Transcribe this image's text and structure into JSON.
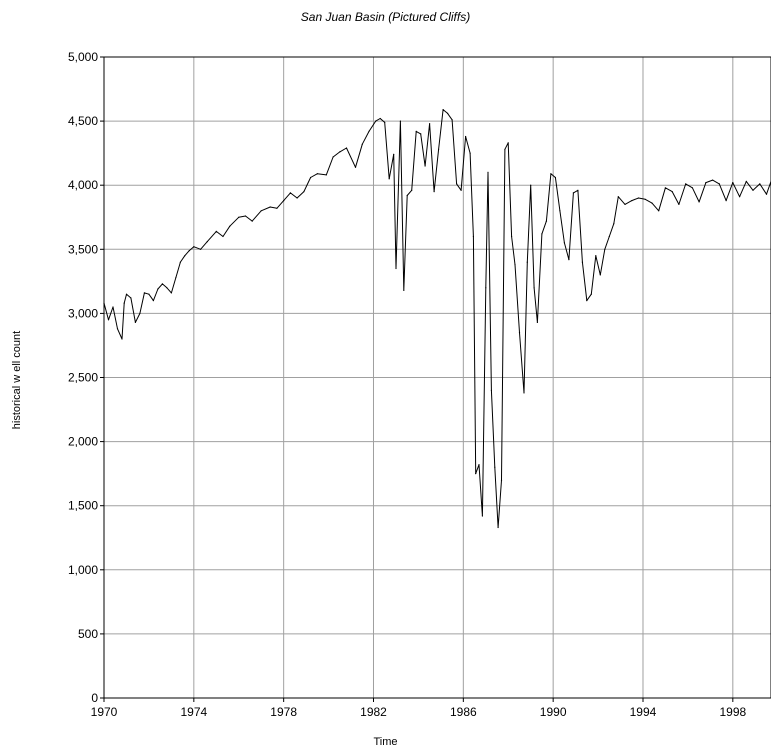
{
  "chart_data": {
    "type": "line",
    "title": "San Juan Basin (Pictured Cliffs)",
    "xlabel": "Time",
    "ylabel": "historical w ell count",
    "xlim": [
      1970,
      1999.7
    ],
    "ylim": [
      0,
      5000
    ],
    "grid": true,
    "x_ticks": [
      1970,
      1974,
      1978,
      1982,
      1986,
      1990,
      1994,
      1998
    ],
    "x_tick_labels": [
      "1970",
      "1974",
      "1978",
      "1982",
      "1986",
      "1990",
      "1994",
      "1998"
    ],
    "y_ticks": [
      0,
      500,
      1000,
      1500,
      2000,
      2500,
      3000,
      3500,
      4000,
      4500,
      5000
    ],
    "y_tick_labels": [
      "0",
      "500",
      "1,000",
      "1,500",
      "2,000",
      "2,500",
      "3,000",
      "3,500",
      "4,000",
      "4,500",
      "5,000"
    ],
    "series": [
      {
        "line_color": "#000000",
        "x": [
          1970.0,
          1970.2,
          1970.4,
          1970.6,
          1970.8,
          1970.9,
          1971.0,
          1971.2,
          1971.4,
          1971.6,
          1971.8,
          1972.0,
          1972.2,
          1972.4,
          1972.6,
          1972.8,
          1973.0,
          1973.2,
          1973.4,
          1973.6,
          1973.8,
          1974.0,
          1974.3,
          1974.6,
          1975.0,
          1975.3,
          1975.6,
          1976.0,
          1976.3,
          1976.6,
          1977.0,
          1977.4,
          1977.7,
          1978.0,
          1978.3,
          1978.6,
          1978.9,
          1979.2,
          1979.5,
          1979.9,
          1980.2,
          1980.5,
          1980.8,
          1981.2,
          1981.5,
          1981.8,
          1982.1,
          1982.3,
          1982.5,
          1982.7,
          1982.9,
          1983.0,
          1983.2,
          1983.35,
          1983.5,
          1983.7,
          1983.9,
          1984.1,
          1984.3,
          1984.5,
          1984.7,
          1984.9,
          1985.1,
          1985.3,
          1985.5,
          1985.7,
          1985.9,
          1986.1,
          1986.3,
          1986.45,
          1986.55,
          1986.7,
          1986.85,
          1987.0,
          1987.1,
          1987.25,
          1987.4,
          1987.55,
          1987.7,
          1987.85,
          1988.0,
          1988.15,
          1988.3,
          1988.5,
          1988.7,
          1988.85,
          1989.0,
          1989.15,
          1989.3,
          1989.5,
          1989.7,
          1989.9,
          1990.1,
          1990.3,
          1990.5,
          1990.7,
          1990.9,
          1991.1,
          1991.3,
          1991.5,
          1991.7,
          1991.9,
          1992.1,
          1992.3,
          1992.5,
          1992.7,
          1992.9,
          1993.2,
          1993.5,
          1993.8,
          1994.1,
          1994.4,
          1994.7,
          1995.0,
          1995.3,
          1995.6,
          1995.9,
          1996.2,
          1996.5,
          1996.8,
          1997.1,
          1997.4,
          1997.7,
          1998.0,
          1998.3,
          1998.6,
          1998.9,
          1999.2,
          1999.5,
          1999.7
        ],
        "values": [
          3080,
          2950,
          3050,
          2880,
          2800,
          3080,
          3150,
          3120,
          2930,
          3000,
          3160,
          3150,
          3100,
          3190,
          3230,
          3200,
          3160,
          3280,
          3400,
          3450,
          3490,
          3520,
          3500,
          3560,
          3640,
          3600,
          3680,
          3750,
          3760,
          3720,
          3800,
          3830,
          3820,
          3880,
          3940,
          3900,
          3950,
          4060,
          4090,
          4080,
          4220,
          4260,
          4290,
          4140,
          4320,
          4420,
          4500,
          4520,
          4490,
          4050,
          4240,
          3350,
          4500,
          3180,
          3920,
          3960,
          4420,
          4400,
          4150,
          4480,
          3950,
          4280,
          4590,
          4560,
          4510,
          4010,
          3960,
          4380,
          4250,
          3600,
          1750,
          1820,
          1420,
          3200,
          4100,
          2400,
          1800,
          1330,
          1700,
          4280,
          4330,
          3600,
          3380,
          2850,
          2380,
          3400,
          4000,
          3200,
          2930,
          3620,
          3720,
          4090,
          4060,
          3800,
          3550,
          3420,
          3940,
          3960,
          3400,
          3100,
          3150,
          3450,
          3300,
          3500,
          3600,
          3700,
          3910,
          3850,
          3880,
          3900,
          3890,
          3860,
          3800,
          3980,
          3950,
          3850,
          4010,
          3980,
          3870,
          4020,
          4040,
          4010,
          3880,
          4020,
          3910,
          4030,
          3960,
          4010,
          3930,
          4030
        ]
      }
    ]
  }
}
